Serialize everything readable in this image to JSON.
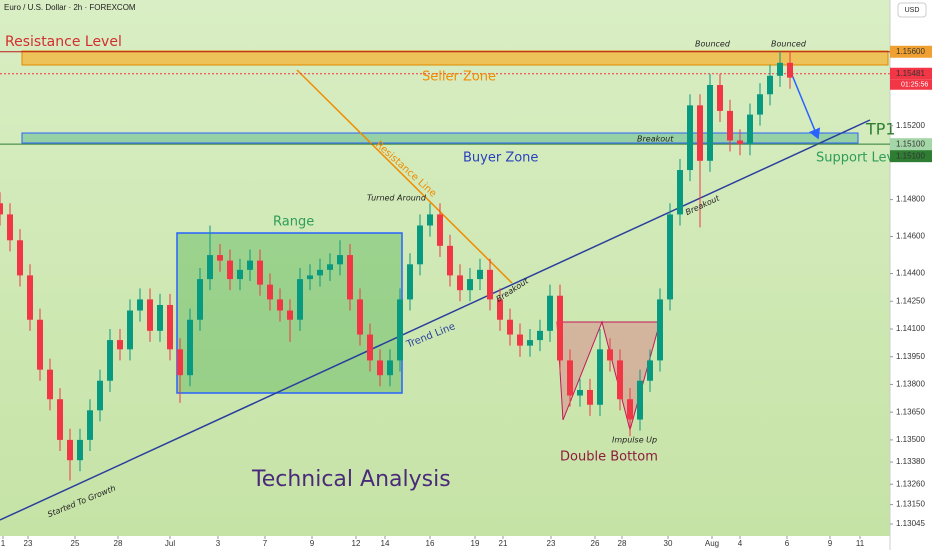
{
  "chart_data": {
    "type": "candlestick",
    "title": "Euro / U.S. Dollar · 2h · FOREXCOM",
    "currency": "USD",
    "countdown": "01:25:56",
    "up_color": "#089981",
    "down_color": "#f23645",
    "xlim": [
      0,
      89
    ],
    "ylim": [
      1.1298,
      1.1588
    ],
    "x": [
      0,
      1,
      2,
      3,
      4,
      5,
      6,
      7,
      8,
      9,
      10,
      11,
      12,
      13,
      14,
      15,
      16,
      17,
      18,
      19,
      20,
      21,
      22,
      23,
      24,
      25,
      26,
      27,
      28,
      29,
      30,
      31,
      32,
      33,
      34,
      35,
      36,
      37,
      38,
      39,
      40,
      41,
      42,
      43,
      44,
      45,
      46,
      47,
      48,
      49,
      50,
      51,
      52,
      53,
      54,
      55,
      56,
      57,
      58,
      59,
      60,
      61,
      62,
      63,
      64,
      65,
      66,
      67,
      68,
      69,
      70,
      71,
      72,
      73,
      74,
      75,
      76,
      77,
      78,
      79
    ],
    "open": [
      1.1478,
      1.1472,
      1.1458,
      1.1439,
      1.1415,
      1.1388,
      1.1372,
      1.135,
      1.1339,
      1.135,
      1.1366,
      1.1382,
      1.1404,
      1.1399,
      1.142,
      1.1426,
      1.1409,
      1.1423,
      1.1399,
      1.1385,
      1.1415,
      1.1437,
      1.145,
      1.1447,
      1.1437,
      1.1442,
      1.1447,
      1.1434,
      1.1426,
      1.142,
      1.1415,
      1.1437,
      1.1439,
      1.1442,
      1.1445,
      1.145,
      1.1426,
      1.1407,
      1.1393,
      1.1385,
      1.1393,
      1.1426,
      1.1445,
      1.1466,
      1.1472,
      1.1455,
      1.1439,
      1.1431,
      1.1437,
      1.1442,
      1.1426,
      1.1415,
      1.1407,
      1.1401,
      1.1404,
      1.1409,
      1.1428,
      1.1393,
      1.1374,
      1.1377,
      1.1369,
      1.1399,
      1.1393,
      1.1372,
      1.1361,
      1.1382,
      1.1393,
      1.1426,
      1.1472,
      1.1496,
      1.1531,
      1.1501,
      1.1542,
      1.1528,
      1.1512,
      1.151,
      1.1526,
      1.1537,
      1.1547,
      1.1554
    ],
    "high": [
      1.1484,
      1.1478,
      1.1464,
      1.1445,
      1.1421,
      1.1394,
      1.1378,
      1.1356,
      1.1356,
      1.1372,
      1.1388,
      1.141,
      1.141,
      1.1426,
      1.1432,
      1.1432,
      1.1429,
      1.1429,
      1.1405,
      1.1421,
      1.1443,
      1.1466,
      1.1456,
      1.1453,
      1.1448,
      1.1453,
      1.1453,
      1.144,
      1.1432,
      1.1426,
      1.1443,
      1.1445,
      1.1448,
      1.1451,
      1.1458,
      1.1456,
      1.1432,
      1.1413,
      1.1399,
      1.1399,
      1.1432,
      1.1451,
      1.1472,
      1.1478,
      1.1478,
      1.1461,
      1.1445,
      1.1443,
      1.1448,
      1.1448,
      1.1432,
      1.1421,
      1.1413,
      1.141,
      1.1415,
      1.1434,
      1.1434,
      1.1399,
      1.1383,
      1.1383,
      1.141,
      1.1405,
      1.1399,
      1.1378,
      1.1388,
      1.1399,
      1.1432,
      1.1478,
      1.1502,
      1.1537,
      1.1537,
      1.1548,
      1.1548,
      1.1534,
      1.1518,
      1.1532,
      1.1543,
      1.1553,
      1.156,
      1.156
    ],
    "low": [
      1.1466,
      1.1452,
      1.1433,
      1.1409,
      1.1382,
      1.1366,
      1.1344,
      1.1328,
      1.1333,
      1.1344,
      1.136,
      1.1376,
      1.1393,
      1.1393,
      1.1414,
      1.1403,
      1.1403,
      1.1393,
      1.137,
      1.1379,
      1.1409,
      1.1431,
      1.1441,
      1.1431,
      1.1431,
      1.1436,
      1.1428,
      1.142,
      1.1414,
      1.1403,
      1.1409,
      1.1431,
      1.1433,
      1.1436,
      1.1439,
      1.142,
      1.1401,
      1.1387,
      1.1379,
      1.1379,
      1.1387,
      1.142,
      1.1439,
      1.146,
      1.1449,
      1.1433,
      1.1425,
      1.1425,
      1.1431,
      1.142,
      1.1409,
      1.1401,
      1.1395,
      1.1395,
      1.1398,
      1.1403,
      1.1387,
      1.1368,
      1.1368,
      1.1363,
      1.1363,
      1.1387,
      1.1366,
      1.1352,
      1.1355,
      1.1376,
      1.1387,
      1.142,
      1.1466,
      1.149,
      1.1465,
      1.1495,
      1.1522,
      1.1506,
      1.1504,
      1.1504,
      1.152,
      1.1531,
      1.1541,
      1.154
    ],
    "close": [
      1.1472,
      1.1458,
      1.1439,
      1.1415,
      1.1388,
      1.1372,
      1.135,
      1.1339,
      1.135,
      1.1366,
      1.1382,
      1.1404,
      1.1399,
      1.142,
      1.1426,
      1.1409,
      1.1423,
      1.1399,
      1.1385,
      1.1415,
      1.1437,
      1.145,
      1.1447,
      1.1437,
      1.1442,
      1.1447,
      1.1434,
      1.1426,
      1.142,
      1.1415,
      1.1437,
      1.1439,
      1.1442,
      1.1445,
      1.145,
      1.1426,
      1.1407,
      1.1393,
      1.1385,
      1.1393,
      1.1426,
      1.1445,
      1.1466,
      1.1472,
      1.1455,
      1.1439,
      1.1431,
      1.1437,
      1.1442,
      1.1426,
      1.1415,
      1.1407,
      1.1401,
      1.1404,
      1.1409,
      1.1428,
      1.1393,
      1.1374,
      1.1377,
      1.1369,
      1.1399,
      1.1393,
      1.1372,
      1.1361,
      1.1382,
      1.1393,
      1.1426,
      1.1472,
      1.1496,
      1.1531,
      1.1501,
      1.1542,
      1.1528,
      1.1512,
      1.151,
      1.1526,
      1.1537,
      1.1547,
      1.1554,
      1.1546
    ],
    "yticks": [
      {
        "value": 1.152,
        "label": "1.15200"
      },
      {
        "value": 1.148,
        "label": "1.14800"
      },
      {
        "value": 1.146,
        "label": "1.14600"
      },
      {
        "value": 1.144,
        "label": "1.14400"
      },
      {
        "value": 1.1425,
        "label": "1.14250"
      },
      {
        "value": 1.141,
        "label": "1.14100"
      },
      {
        "value": 1.1395,
        "label": "1.13950"
      },
      {
        "value": 1.138,
        "label": "1.13800"
      },
      {
        "value": 1.1365,
        "label": "1.13650"
      },
      {
        "value": 1.135,
        "label": "1.13500"
      },
      {
        "value": 1.1338,
        "label": "1.13380"
      },
      {
        "value": 1.1326,
        "label": "1.13260"
      },
      {
        "value": 1.1315,
        "label": "1.13150"
      },
      {
        "value": 1.13045,
        "label": "1.13045"
      }
    ],
    "xticks": [
      {
        "value": 0.3,
        "label": "1"
      },
      {
        "value": 2.8,
        "label": "23"
      },
      {
        "value": 7.5,
        "label": "25"
      },
      {
        "value": 11.8,
        "label": "28"
      },
      {
        "value": 17,
        "label": "Jul"
      },
      {
        "value": 21.8,
        "label": "3"
      },
      {
        "value": 26.5,
        "label": "7"
      },
      {
        "value": 31.2,
        "label": "9"
      },
      {
        "value": 35.6,
        "label": "12"
      },
      {
        "value": 38.5,
        "label": "14"
      },
      {
        "value": 43,
        "label": "16"
      },
      {
        "value": 47.5,
        "label": "19"
      },
      {
        "value": 50.3,
        "label": "21"
      },
      {
        "value": 55.1,
        "label": "23"
      },
      {
        "value": 59.5,
        "label": "26"
      },
      {
        "value": 62.2,
        "label": "28"
      },
      {
        "value": 66.8,
        "label": "30"
      },
      {
        "value": 71.2,
        "label": "Aug"
      },
      {
        "value": 74,
        "label": "4"
      },
      {
        "value": 78.7,
        "label": "6"
      },
      {
        "value": 83,
        "label": "9"
      },
      {
        "value": 86,
        "label": "11"
      }
    ],
    "price_lines": [
      {
        "value": 1.156,
        "color": "#b71c1c"
      },
      {
        "value": 1.15481,
        "color": "#f23645",
        "dashed": true
      },
      {
        "value": 1.151,
        "color": "#2e7d32"
      }
    ],
    "price_tags": [
      {
        "value": 1.156,
        "label": "1.15600",
        "color": "#f0a030"
      },
      {
        "value": 1.15481,
        "label": "1.15481",
        "color": "#f23645"
      },
      {
        "value": 1.151,
        "label": "1.15100",
        "color": "#a5d6a7"
      },
      {
        "value": 1.151,
        "label": "1.15100",
        "color": "#2e7d32"
      }
    ],
    "annotations": [
      "Resistance Level",
      "Seller Zone",
      "Buyer Zone",
      "TP1",
      "Support Level",
      "Breakout",
      "Bounced",
      "Bounced",
      "Breakout",
      "Turned Around",
      "Resistance Line",
      "Range",
      "Breakout",
      "Trend Line",
      "Double Bottom",
      "Impulse Up",
      "Technical Analysis",
      "Started To Growth"
    ]
  }
}
